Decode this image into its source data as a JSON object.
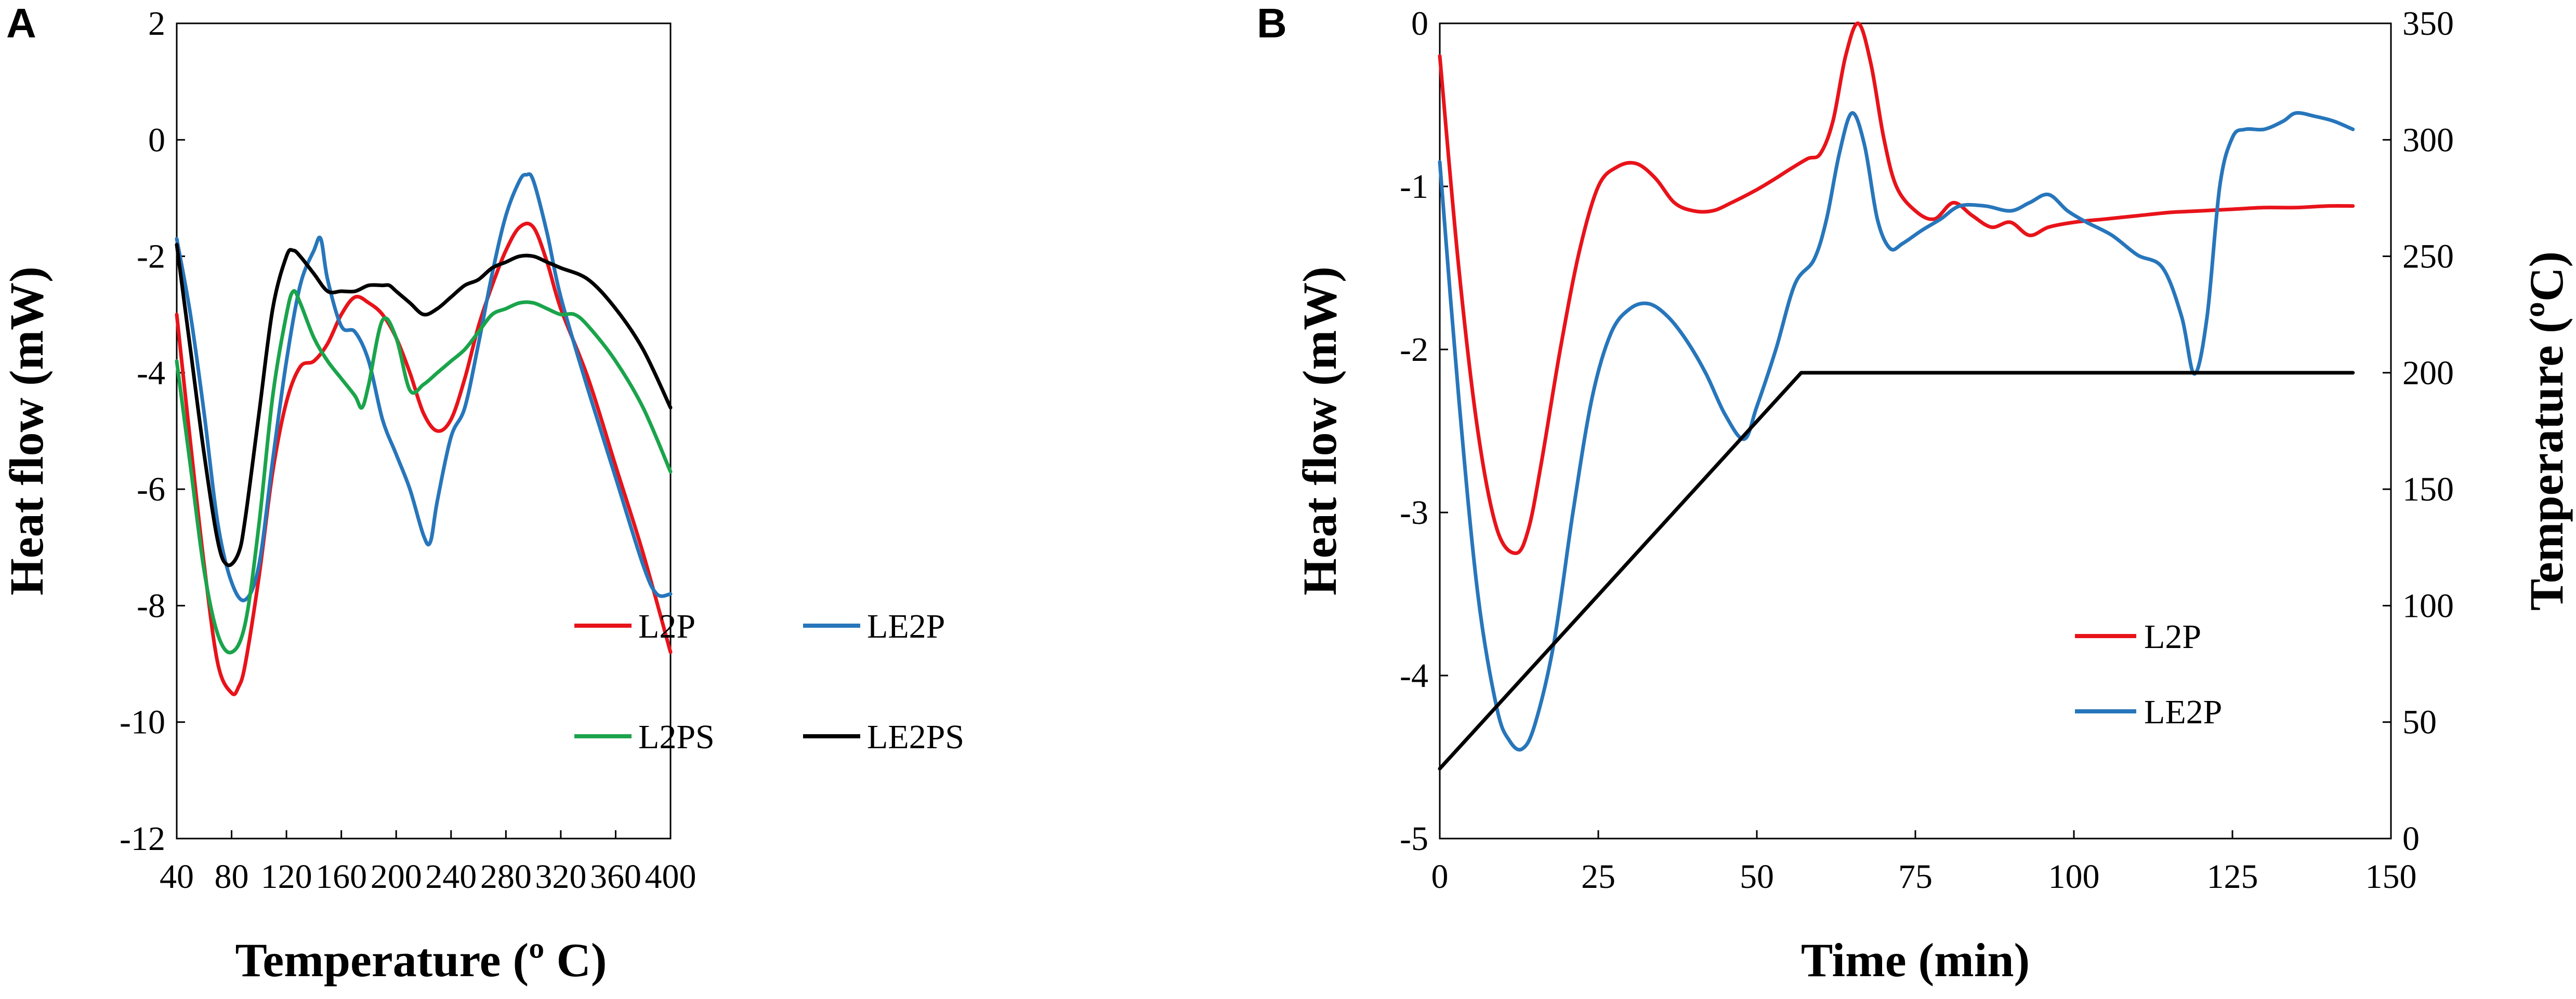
{
  "figure": {
    "panels": [
      "A",
      "B"
    ]
  },
  "chart_data": [
    {
      "panel": "A",
      "type": "line",
      "title": "",
      "xlabel": "Temperature (º C)",
      "ylabel": "Heat flow (mW)",
      "xlim": [
        40,
        400
      ],
      "ylim": [
        -12,
        2
      ],
      "xticks": [
        "40",
        "80",
        "120",
        "160",
        "200",
        "240",
        "280",
        "320",
        "360",
        "400"
      ],
      "yticks": [
        "-12",
        "-10",
        "-8",
        "-6",
        "-4",
        "-2",
        "0",
        "2"
      ],
      "legend": {
        "placement": "lower-center"
      },
      "series": [
        {
          "name": "L2P",
          "color": "#e8131a",
          "x": [
            40,
            50,
            60,
            70,
            80,
            85,
            90,
            100,
            110,
            120,
            130,
            140,
            150,
            160,
            170,
            180,
            190,
            200,
            210,
            220,
            230,
            240,
            250,
            260,
            270,
            280,
            290,
            300,
            310,
            320,
            340,
            360,
            380,
            400
          ],
          "y": [
            -3.0,
            -5.2,
            -7.3,
            -9.0,
            -9.5,
            -9.4,
            -9.0,
            -7.5,
            -5.7,
            -4.5,
            -3.9,
            -3.8,
            -3.5,
            -3.0,
            -2.7,
            -2.8,
            -3.0,
            -3.4,
            -4.0,
            -4.7,
            -5.0,
            -4.8,
            -4.1,
            -3.2,
            -2.5,
            -1.9,
            -1.5,
            -1.5,
            -2.1,
            -2.9,
            -4.1,
            -5.6,
            -7.1,
            -8.8
          ]
        },
        {
          "name": "LE2P",
          "color": "#2776bb",
          "x": [
            40,
            50,
            60,
            70,
            80,
            90,
            100,
            110,
            120,
            130,
            140,
            145,
            150,
            160,
            170,
            180,
            190,
            200,
            210,
            220,
            225,
            230,
            240,
            250,
            260,
            270,
            280,
            290,
            295,
            300,
            310,
            320,
            340,
            360,
            380,
            390,
            400
          ],
          "y": [
            -1.7,
            -3.0,
            -4.7,
            -6.6,
            -7.6,
            -7.9,
            -7.3,
            -5.5,
            -3.8,
            -2.5,
            -1.9,
            -1.7,
            -2.4,
            -3.2,
            -3.3,
            -3.8,
            -4.8,
            -5.4,
            -6.0,
            -6.8,
            -6.9,
            -6.2,
            -5.1,
            -4.6,
            -3.5,
            -2.3,
            -1.3,
            -0.7,
            -0.6,
            -0.7,
            -1.6,
            -2.7,
            -4.3,
            -5.8,
            -7.3,
            -7.8,
            -7.8
          ]
        },
        {
          "name": "L2PS",
          "color": "#1aa44b",
          "x": [
            40,
            50,
            60,
            70,
            80,
            90,
            100,
            110,
            120,
            125,
            130,
            140,
            150,
            160,
            170,
            175,
            180,
            190,
            200,
            210,
            220,
            230,
            240,
            250,
            260,
            270,
            280,
            290,
            300,
            310,
            320,
            330,
            340,
            360,
            380,
            400
          ],
          "y": [
            -3.8,
            -5.6,
            -7.4,
            -8.5,
            -8.8,
            -8.3,
            -6.6,
            -4.4,
            -3.0,
            -2.6,
            -2.8,
            -3.4,
            -3.8,
            -4.1,
            -4.4,
            -4.6,
            -4.2,
            -3.1,
            -3.4,
            -4.3,
            -4.2,
            -4.0,
            -3.8,
            -3.6,
            -3.3,
            -3.0,
            -2.9,
            -2.8,
            -2.8,
            -2.9,
            -3.0,
            -3.0,
            -3.2,
            -3.8,
            -4.6,
            -5.7
          ]
        },
        {
          "name": "LE2PS",
          "color": "#000000",
          "x": [
            40,
            50,
            60,
            70,
            77,
            85,
            90,
            100,
            110,
            120,
            125,
            130,
            140,
            150,
            160,
            170,
            180,
            190,
            195,
            200,
            210,
            220,
            230,
            240,
            250,
            260,
            270,
            280,
            290,
            300,
            310,
            320,
            340,
            360,
            380,
            400
          ],
          "y": [
            -1.8,
            -3.6,
            -5.4,
            -6.9,
            -7.3,
            -7.1,
            -6.5,
            -4.7,
            -2.9,
            -2.0,
            -1.9,
            -2.0,
            -2.3,
            -2.6,
            -2.6,
            -2.6,
            -2.5,
            -2.5,
            -2.5,
            -2.6,
            -2.8,
            -3.0,
            -2.9,
            -2.7,
            -2.5,
            -2.4,
            -2.2,
            -2.1,
            -2.0,
            -2.0,
            -2.1,
            -2.2,
            -2.4,
            -2.9,
            -3.6,
            -4.6
          ]
        }
      ]
    },
    {
      "panel": "B",
      "type": "line",
      "title": "",
      "xlabel": "Time (min)",
      "ylabel": "Heat flow (mW)",
      "y2label": "Temperature (ºC)",
      "xlim": [
        0,
        150
      ],
      "ylim": [
        -5,
        0
      ],
      "y2lim": [
        0,
        350
      ],
      "xticks": [
        "0",
        "25",
        "50",
        "75",
        "100",
        "125",
        "150"
      ],
      "yticks": [
        "-5",
        "-4",
        "-3",
        "-2",
        "-1",
        "0"
      ],
      "y2ticks": [
        "0",
        "50",
        "100",
        "150",
        "200",
        "250",
        "300",
        "350"
      ],
      "legend": {
        "placement": "lower-right"
      },
      "series": [
        {
          "name": "L2P",
          "color": "#e8131a",
          "axis": "left",
          "x": [
            0,
            3,
            6,
            9,
            12,
            14,
            16,
            19,
            22,
            25,
            28,
            31,
            34,
            37,
            40,
            43,
            46,
            50,
            53,
            55,
            58,
            60,
            62,
            64,
            66,
            68,
            70,
            72,
            75,
            78,
            81,
            84,
            87,
            90,
            93,
            96,
            100,
            105,
            110,
            115,
            120,
            125,
            130,
            135,
            140,
            144
          ],
          "y": [
            -0.2,
            -1.5,
            -2.5,
            -3.1,
            -3.25,
            -3.1,
            -2.7,
            -2.0,
            -1.4,
            -1.0,
            -0.88,
            -0.86,
            -0.95,
            -1.1,
            -1.15,
            -1.15,
            -1.1,
            -1.02,
            -0.95,
            -0.9,
            -0.83,
            -0.8,
            -0.6,
            -0.2,
            0.0,
            -0.25,
            -0.7,
            -1.0,
            -1.15,
            -1.2,
            -1.1,
            -1.18,
            -1.25,
            -1.22,
            -1.3,
            -1.25,
            -1.22,
            -1.2,
            -1.18,
            -1.16,
            -1.15,
            -1.14,
            -1.13,
            -1.13,
            -1.12,
            -1.12
          ]
        },
        {
          "name": "LE2P",
          "color": "#2776bb",
          "axis": "left",
          "x": [
            0,
            3,
            6,
            9,
            11,
            13,
            15,
            18,
            21,
            24,
            27,
            30,
            33,
            36,
            39,
            42,
            45,
            48,
            50,
            53,
            56,
            59,
            61,
            63,
            65,
            67,
            69,
            71,
            73,
            76,
            79,
            82,
            86,
            90,
            93,
            96,
            99,
            102,
            106,
            110,
            114,
            117,
            119,
            121,
            123,
            125,
            127,
            130,
            133,
            135,
            138,
            141,
            144
          ],
          "y": [
            -0.85,
            -2.3,
            -3.5,
            -4.2,
            -4.4,
            -4.45,
            -4.3,
            -3.8,
            -3.0,
            -2.3,
            -1.9,
            -1.75,
            -1.72,
            -1.8,
            -1.95,
            -2.15,
            -2.4,
            -2.55,
            -2.35,
            -2.0,
            -1.6,
            -1.45,
            -1.2,
            -0.8,
            -0.55,
            -0.75,
            -1.2,
            -1.38,
            -1.35,
            -1.27,
            -1.2,
            -1.12,
            -1.12,
            -1.15,
            -1.1,
            -1.05,
            -1.15,
            -1.22,
            -1.3,
            -1.42,
            -1.5,
            -1.8,
            -2.15,
            -1.8,
            -1.0,
            -0.7,
            -0.65,
            -0.65,
            -0.6,
            -0.55,
            -0.57,
            -0.6,
            -0.65
          ]
        },
        {
          "name": "Temperature",
          "color": "#000000",
          "axis": "right",
          "legend": false,
          "x": [
            0,
            57,
            144
          ],
          "y": [
            30,
            200,
            200
          ]
        }
      ]
    }
  ]
}
